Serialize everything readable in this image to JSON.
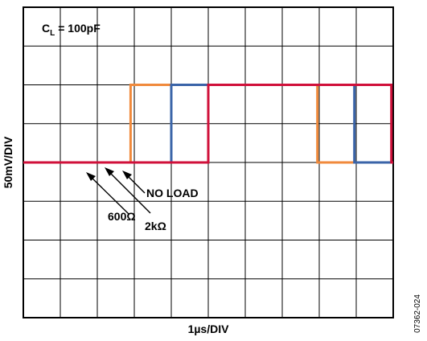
{
  "chart_data": {
    "type": "line",
    "title": "",
    "xlabel": "1µs/DIV",
    "ylabel": "50mV/DIV",
    "xlim": [
      0,
      10
    ],
    "ylim": [
      -4,
      4
    ],
    "grid": true,
    "annotations": {
      "condition_prefix": "C",
      "condition_subscript": "L",
      "condition_value": "= 100pF",
      "series_labels": [
        "NO LOAD",
        "600Ω",
        "2kΩ"
      ],
      "figure_id": "07362-024"
    },
    "series": [
      {
        "name": "600Ω",
        "color": "#f08a3c",
        "x": [
          0,
          2.9,
          2.9,
          4.0,
          7.95,
          7.95,
          10
        ],
        "y": [
          0,
          0,
          2,
          2,
          2,
          0,
          0
        ]
      },
      {
        "name": "2kΩ",
        "color": "#3a64a8",
        "x": [
          0,
          4.0,
          4.0,
          8.95,
          8.95,
          10
        ],
        "y": [
          0,
          0,
          2,
          2,
          0,
          0
        ]
      },
      {
        "name": "NO LOAD",
        "color": "#d0103a",
        "x": [
          0,
          5.0,
          5.0,
          9.95,
          9.95,
          10
        ],
        "y": [
          0,
          0,
          2,
          2,
          0,
          0
        ]
      }
    ]
  }
}
